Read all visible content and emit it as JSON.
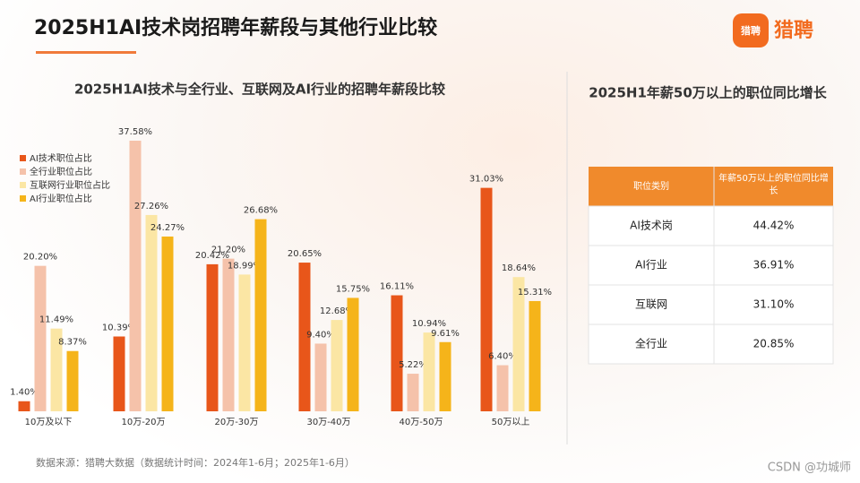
{
  "header": {
    "title": "2025H1AI技术岗招聘年薪段与其他行业比较",
    "logo": "猎聘",
    "logo_icon": "猎聘"
  },
  "chart_data": {
    "type": "bar",
    "title": "2025H1AI技术与全行业、互联网及AI行业的招聘年薪段比较",
    "categories": [
      "10万及以下",
      "10万-20万",
      "20万-30万",
      "30万-40万",
      "40万-50万",
      "50万以上"
    ],
    "series": [
      {
        "name": "AI技术职位占比",
        "color": "#e8561a",
        "values": [
          1.4,
          10.39,
          20.42,
          20.65,
          16.11,
          31.03
        ],
        "value_labels": [
          "1.40%",
          "10.39%",
          "20.42%",
          "20.65%",
          "16.11%",
          "31.03%"
        ]
      },
      {
        "name": "全行业职位占比",
        "color": "#f5c2aa",
        "values": [
          20.2,
          37.58,
          21.2,
          9.4,
          5.22,
          6.4
        ],
        "value_labels": [
          "20.20%",
          "37.58%",
          "21.20%",
          "9.40%",
          "5.22%",
          "6.40%"
        ]
      },
      {
        "name": "互联网行业职位占比",
        "color": "#fbe6a4",
        "values": [
          11.49,
          27.26,
          18.99,
          12.68,
          10.94,
          18.64
        ],
        "value_labels": [
          "11.49%",
          "27.26%",
          "18.99%",
          "12.68%",
          "10.94%",
          "18.64%"
        ]
      },
      {
        "name": "AI行业职位占比",
        "color": "#f5b41a",
        "values": [
          8.37,
          24.27,
          26.68,
          15.75,
          9.61,
          15.31
        ],
        "value_labels": [
          "8.37%",
          "24.27%",
          "26.68%",
          "15.75%",
          "9.61%",
          "15.31%"
        ]
      }
    ]
  },
  "table": {
    "title": "2025H1年薪50万以上的职位同比增长",
    "header": [
      "职位类别",
      "年薪50万以上的职位同比增长"
    ],
    "rows": [
      [
        "AI技术岗",
        "44.42%"
      ],
      [
        "AI行业",
        "36.91%"
      ],
      [
        "互联网",
        "31.10%"
      ],
      [
        "全行业",
        "20.85%"
      ]
    ]
  },
  "footer": {
    "source": "数据来源：猎聘大数据（数据统计时间：2024年1-6月；2025年1-6月）",
    "watermark": "CSDN @功城师"
  }
}
